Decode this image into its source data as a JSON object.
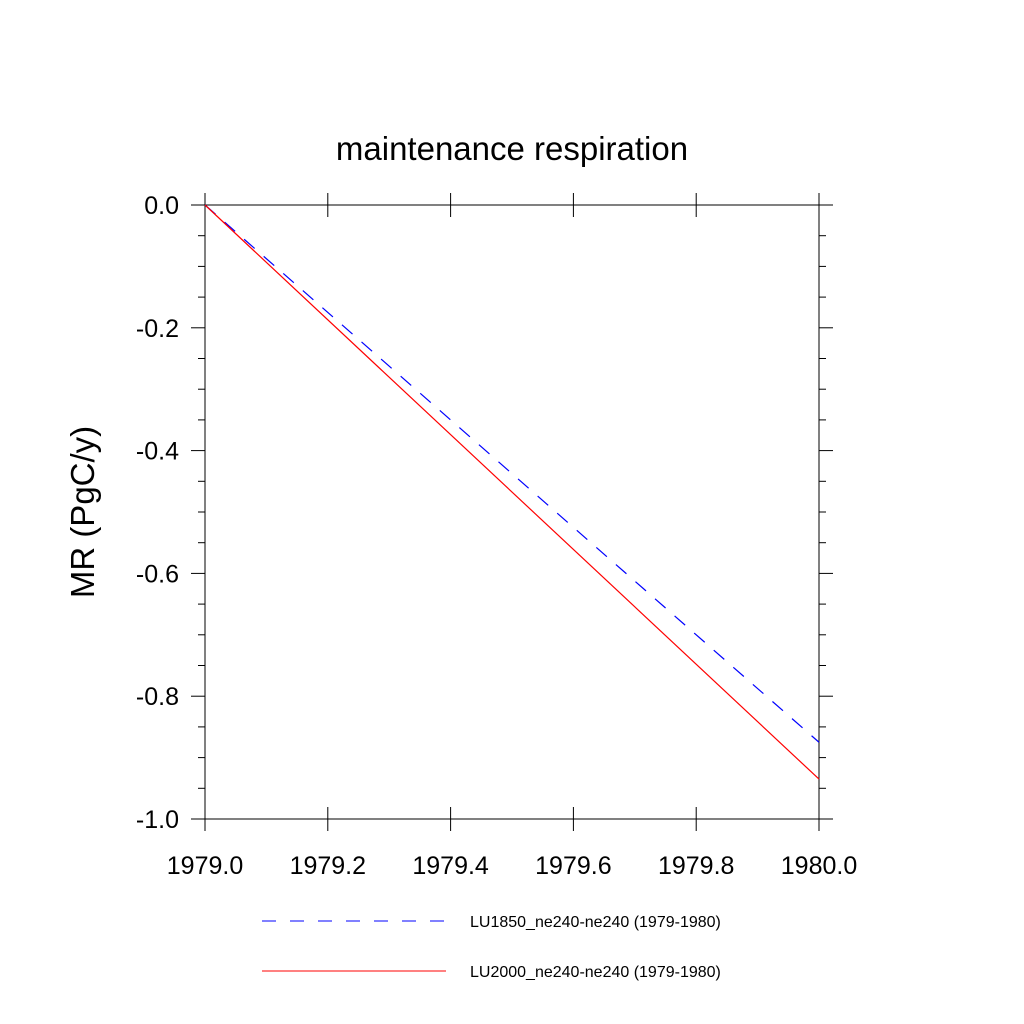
{
  "chart_data": {
    "type": "line",
    "title": "maintenance respiration",
    "xlabel": "",
    "ylabel": "MR  (PgC/y)",
    "xlim": [
      1979.0,
      1980.0
    ],
    "ylim": [
      -1.0,
      0.0
    ],
    "x_ticks": [
      "1979.0",
      "1979.2",
      "1979.4",
      "1979.6",
      "1979.8",
      "1980.0"
    ],
    "x_tick_values": [
      1979.0,
      1979.2,
      1979.4,
      1979.6,
      1979.8,
      1980.0
    ],
    "y_ticks": [
      "0.0",
      "-0.2",
      "-0.4",
      "-0.6",
      "-0.8",
      "-1.0"
    ],
    "y_tick_values": [
      0.0,
      -0.2,
      -0.4,
      -0.6,
      -0.8,
      -1.0
    ],
    "grid": false,
    "legend_position": "bottom",
    "series": [
      {
        "name": "LU1850_ne240-ne240 (1979-1980)",
        "color": "#0000ff",
        "style": "dashed",
        "x": [
          1979.0,
          1980.0
        ],
        "y": [
          0.0,
          -0.875
        ]
      },
      {
        "name": "LU2000_ne240-ne240 (1979-1980)",
        "color": "#ff0000",
        "style": "solid",
        "x": [
          1979.0,
          1980.0
        ],
        "y": [
          0.0,
          -0.935
        ]
      }
    ]
  }
}
